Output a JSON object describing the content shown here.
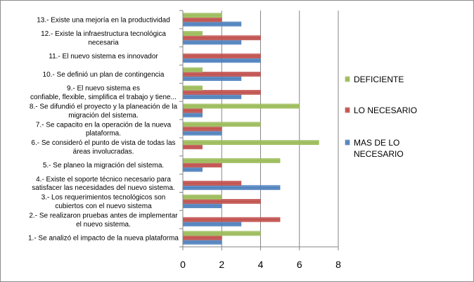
{
  "chart_data": {
    "type": "bar",
    "orientation": "horizontal",
    "categories": [
      [
        "1.- Se analizó el impacto de la nueva plataforma"
      ],
      [
        "2.- Se realizaron pruebas antes de implementar",
        "el nuevo sistema."
      ],
      [
        "3.- Los requerimientos tecnológicos son",
        "cubiertos con el nuevo sistema"
      ],
      [
        "4.- Existe el soporte técnico necesario para",
        "satisfacer las necesidades del nuevo sistema."
      ],
      [
        "5.- Se planeo la migración del sistema."
      ],
      [
        "6.- Se consideró el punto de vista de todas las",
        "áreas involucradas."
      ],
      [
        "7.- Se capacito en la operación de la nueva",
        "plataforma."
      ],
      [
        "8.- Se difundió el proyecto y la planeación de la",
        "migración del sistema."
      ],
      [
        "9.- El nuevo sistema es",
        "confiable, flexible, simplifica el trabajo y tiene..."
      ],
      [
        "10.- Se definió un plan de contingencia"
      ],
      [
        "11.- El nuevo sistema es innovador"
      ],
      [
        "12.- Existe la infraestructura tecnológica",
        "necesaria"
      ],
      [
        "13.- Existe una mejoría en la productividad"
      ]
    ],
    "series": [
      {
        "name": [
          "MAS DE LO",
          "NECESARIO"
        ],
        "color": "#4f81bd",
        "values": [
          2,
          3,
          2,
          5,
          1,
          0,
          2,
          1,
          3,
          3,
          4,
          3,
          3
        ]
      },
      {
        "name": [
          "LO NECESARIO"
        ],
        "color": "#c0504d",
        "values": [
          2,
          5,
          4,
          3,
          2,
          1,
          2,
          1,
          4,
          4,
          4,
          4,
          2
        ]
      },
      {
        "name": [
          "DEFICIENTE"
        ],
        "color": "#9bbb59",
        "values": [
          4,
          0,
          2,
          0,
          5,
          7,
          4,
          6,
          1,
          1,
          0,
          1,
          2
        ]
      }
    ],
    "xlim": [
      0,
      8
    ],
    "xticks": [
      "0",
      "2",
      "4",
      "6",
      "8"
    ],
    "grid": "vertical",
    "legend_position": "right"
  }
}
